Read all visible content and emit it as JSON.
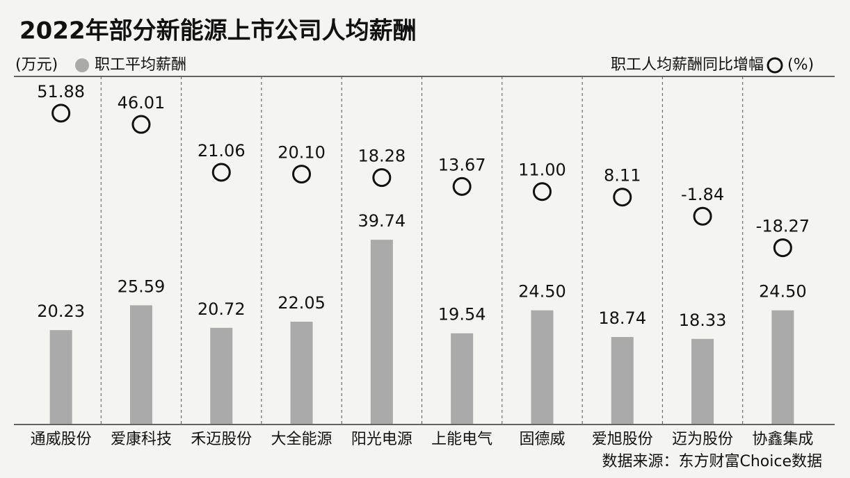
{
  "chart_data": {
    "type": "bar_and_circle",
    "title": "2022年部分新能源上市公司人均薪酬",
    "y_unit": "(万元)",
    "y2_unit": "(%)",
    "source": "数据来源：东方财富Choice数据",
    "categories": [
      "通威股份",
      "爱康科技",
      "禾迈股份",
      "大全能源",
      "阳光电源",
      "上能电气",
      "固德威",
      "爱旭股份",
      "迈为股份",
      "协鑫集成"
    ],
    "series": [
      {
        "name": "职工平均薪酬",
        "color": "#aaaaaa",
        "values": [
          20.23,
          25.59,
          20.72,
          22.05,
          39.74,
          19.54,
          24.5,
          18.74,
          18.33,
          24.5
        ],
        "value_labels": [
          "20.23",
          "25.59",
          "20.72",
          "22.05",
          "39.74",
          "19.54",
          "24.50",
          "18.74",
          "18.33",
          "24.50"
        ]
      },
      {
        "name": "职工人均薪酬同比增幅",
        "color": "#111111",
        "axis": "y2",
        "values": [
          51.88,
          46.01,
          21.06,
          20.1,
          18.28,
          13.67,
          11.0,
          8.11,
          -1.84,
          -18.27
        ],
        "value_labels": [
          "51.88",
          "46.01",
          "21.06",
          "20.10",
          "18.28",
          "13.67",
          "11.00",
          "8.11",
          "-1.84",
          "-18.27"
        ]
      }
    ],
    "ylim": [
      0,
      75
    ],
    "y2lim": [
      -110,
      71
    ]
  }
}
